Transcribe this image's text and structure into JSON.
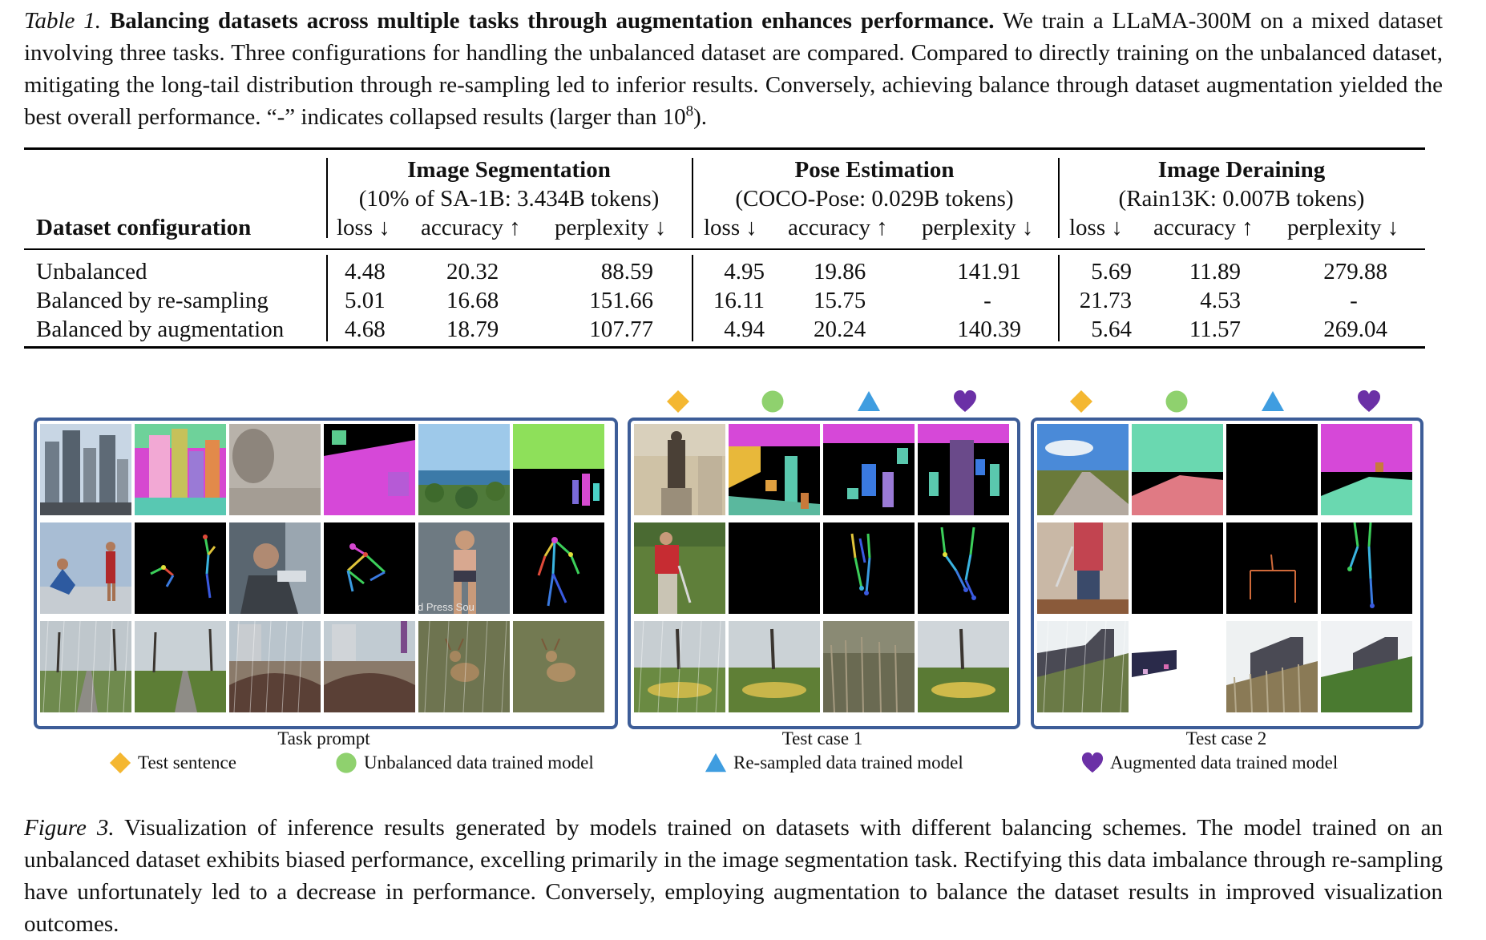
{
  "table_caption": {
    "label": "Table 1.",
    "title": "Balancing datasets across multiple tasks through augmentation enhances performance.",
    "body": "We train a LLaMA-300M on a mixed dataset involving three tasks. Three configurations for handling the unbalanced dataset are compared. Compared to directly training on the unbalanced dataset, mitigating the long-tail distribution through re-sampling led to inferior results. Conversely, achieving balance through dataset augmentation yielded the best overall performance. “-” indicates collapsed results (larger than 10",
    "exponent": "8",
    "end": ")."
  },
  "table": {
    "row_header": "Dataset configuration",
    "groups": [
      {
        "title": "Image Segmentation",
        "subtitle": "(10% of SA-1B: 3.434B tokens)"
      },
      {
        "title": "Pose Estimation",
        "subtitle": "(COCO-Pose: 0.029B tokens)"
      },
      {
        "title": "Image Deraining",
        "subtitle": "(Rain13K: 0.007B tokens)"
      }
    ],
    "metrics": [
      "loss ↓",
      "accuracy ↑",
      "perplexity ↓"
    ],
    "rows": [
      {
        "label": "Unbalanced",
        "values": [
          "4.48",
          "20.32",
          "88.59",
          "4.95",
          "19.86",
          "141.91",
          "5.69",
          "11.89",
          "279.88"
        ]
      },
      {
        "label": "Balanced by re-sampling",
        "values": [
          "5.01",
          "16.68",
          "151.66",
          "16.11",
          "15.75",
          "-",
          "21.73",
          "4.53",
          "-"
        ]
      },
      {
        "label": "Balanced by augmentation",
        "values": [
          "4.68",
          "18.79",
          "107.77",
          "4.94",
          "20.24",
          "140.39",
          "5.64",
          "11.57",
          "269.04"
        ]
      }
    ]
  },
  "figure": {
    "panel_labels": [
      "Task prompt",
      "Test case 1",
      "Test case 2"
    ],
    "legend": [
      {
        "icon": "diamond-icon",
        "label": "Test sentence",
        "color": "#f4b731"
      },
      {
        "icon": "circle-icon",
        "label": "Unbalanced data trained model",
        "color": "#8fd16e"
      },
      {
        "icon": "triangle-icon",
        "label": "Re-sampled data trained model",
        "color": "#3f9de0"
      },
      {
        "icon": "heart-icon",
        "label": "Augmented data trained model",
        "color": "#6b30a6"
      }
    ],
    "watermark_text": "d Press   Sou"
  },
  "figure_caption": {
    "label": "Figure 3.",
    "body": "Visualization of inference results generated by models trained on datasets with different balancing schemes. The model trained on an unbalanced dataset exhibits biased performance, excelling primarily in the image segmentation task. Rectifying this data imbalance through re-sampling have unfortunately led to a decrease in performance. Conversely, employing augmentation to balance the dataset results in improved visualization outcomes."
  }
}
